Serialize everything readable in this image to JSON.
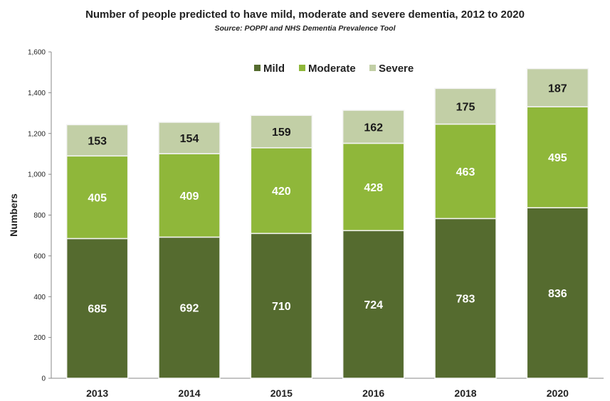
{
  "chart_data": {
    "type": "bar",
    "stacked": true,
    "title": "Number of people predicted to have mild, moderate and severe dementia, 2012 to 2020",
    "subtitle": "Source: POPPI and NHS Dementia Prevalence Tool",
    "xlabel": "",
    "ylabel": "Numbers",
    "ylim": [
      0,
      1600
    ],
    "yticks": [
      "0",
      "200",
      "400",
      "600",
      "800",
      "1,000",
      "1,200",
      "1,400",
      "1,600"
    ],
    "categories": [
      "2013",
      "2014",
      "2015",
      "2016",
      "2018",
      "2020"
    ],
    "series": [
      {
        "name": "Mild",
        "values": [
          685,
          692,
          710,
          724,
          783,
          836
        ],
        "color": "#556b2f",
        "label_color": "#ffffff"
      },
      {
        "name": "Moderate",
        "values": [
          405,
          409,
          420,
          428,
          463,
          495
        ],
        "color": "#8fb73a",
        "label_color": "#ffffff"
      },
      {
        "name": "Severe",
        "values": [
          153,
          154,
          159,
          162,
          175,
          187
        ],
        "color": "#c2cfa6",
        "label_color": "#1a1a1a"
      }
    ],
    "legend": "top-center",
    "grid": false
  }
}
